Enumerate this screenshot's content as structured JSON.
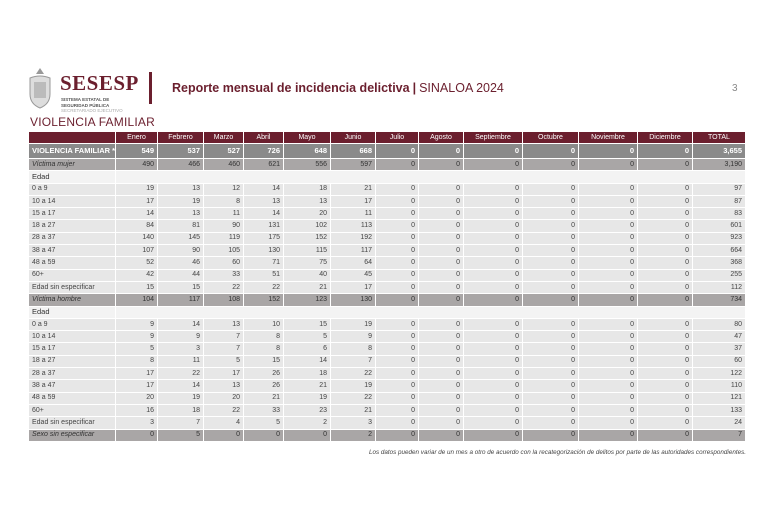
{
  "header": {
    "brand": "SESESP",
    "brand_sub": [
      "SISTEMA ESTATAL DE",
      "SEGURIDAD PÚBLICA",
      "SECRETARIADO EJECUTIVO"
    ],
    "title": "Reporte mensual de incidencia delictiva",
    "separator": "|",
    "state": "SINALOA 2024",
    "page_number": "3"
  },
  "section_title": "VIOLENCIA FAMILIAR",
  "colors": {
    "brand": "#6b1f2e",
    "total_row": "#8a8a8a",
    "sub_row": "#a9a6a6"
  },
  "table": {
    "columns": [
      "",
      "Enero",
      "Febrero",
      "Marzo",
      "Abril",
      "Mayo",
      "Junio",
      "Julio",
      "Agosto",
      "Septiembre",
      "Octubre",
      "Noviembre",
      "Diciembre",
      "TOTAL"
    ],
    "rows": [
      {
        "type": "total",
        "label": "VIOLENCIA FAMILIAR  *",
        "values": [
          "549",
          "537",
          "527",
          "726",
          "648",
          "668",
          "0",
          "0",
          "0",
          "0",
          "0",
          "0",
          "3,655"
        ]
      },
      {
        "type": "sub",
        "label": "Víctima mujer",
        "values": [
          "490",
          "466",
          "460",
          "621",
          "556",
          "597",
          "0",
          "0",
          "0",
          "0",
          "0",
          "0",
          "3,190"
        ]
      },
      {
        "type": "grp",
        "label": "Edad",
        "values": []
      },
      {
        "type": "row",
        "label": "0 a 9",
        "values": [
          "19",
          "13",
          "12",
          "14",
          "18",
          "21",
          "0",
          "0",
          "0",
          "0",
          "0",
          "0",
          "97"
        ]
      },
      {
        "type": "row",
        "label": "10 a 14",
        "values": [
          "17",
          "19",
          "8",
          "13",
          "13",
          "17",
          "0",
          "0",
          "0",
          "0",
          "0",
          "0",
          "87"
        ]
      },
      {
        "type": "row",
        "label": "15 a 17",
        "values": [
          "14",
          "13",
          "11",
          "14",
          "20",
          "11",
          "0",
          "0",
          "0",
          "0",
          "0",
          "0",
          "83"
        ]
      },
      {
        "type": "row",
        "label": "18 a 27",
        "values": [
          "84",
          "81",
          "90",
          "131",
          "102",
          "113",
          "0",
          "0",
          "0",
          "0",
          "0",
          "0",
          "601"
        ]
      },
      {
        "type": "row",
        "label": "28 a 37",
        "values": [
          "140",
          "145",
          "119",
          "175",
          "152",
          "192",
          "0",
          "0",
          "0",
          "0",
          "0",
          "0",
          "923"
        ]
      },
      {
        "type": "row",
        "label": "38 a 47",
        "values": [
          "107",
          "90",
          "105",
          "130",
          "115",
          "117",
          "0",
          "0",
          "0",
          "0",
          "0",
          "0",
          "664"
        ]
      },
      {
        "type": "row",
        "label": "48 a 59",
        "values": [
          "52",
          "46",
          "60",
          "71",
          "75",
          "64",
          "0",
          "0",
          "0",
          "0",
          "0",
          "0",
          "368"
        ]
      },
      {
        "type": "row",
        "label": "60+",
        "values": [
          "42",
          "44",
          "33",
          "51",
          "40",
          "45",
          "0",
          "0",
          "0",
          "0",
          "0",
          "0",
          "255"
        ]
      },
      {
        "type": "row",
        "label": "Edad sin especificar",
        "values": [
          "15",
          "15",
          "22",
          "22",
          "21",
          "17",
          "0",
          "0",
          "0",
          "0",
          "0",
          "0",
          "112"
        ]
      },
      {
        "type": "sub",
        "label": "Víctima hombre",
        "values": [
          "104",
          "117",
          "108",
          "152",
          "123",
          "130",
          "0",
          "0",
          "0",
          "0",
          "0",
          "0",
          "734"
        ]
      },
      {
        "type": "grp",
        "label": "Edad",
        "values": []
      },
      {
        "type": "row",
        "label": "0 a 9",
        "values": [
          "9",
          "14",
          "13",
          "10",
          "15",
          "19",
          "0",
          "0",
          "0",
          "0",
          "0",
          "0",
          "80"
        ]
      },
      {
        "type": "row",
        "label": "10 a 14",
        "values": [
          "9",
          "9",
          "7",
          "8",
          "5",
          "9",
          "0",
          "0",
          "0",
          "0",
          "0",
          "0",
          "47"
        ]
      },
      {
        "type": "row",
        "label": "15 a 17",
        "values": [
          "5",
          "3",
          "7",
          "8",
          "6",
          "8",
          "0",
          "0",
          "0",
          "0",
          "0",
          "0",
          "37"
        ]
      },
      {
        "type": "row",
        "label": "18 a 27",
        "values": [
          "8",
          "11",
          "5",
          "15",
          "14",
          "7",
          "0",
          "0",
          "0",
          "0",
          "0",
          "0",
          "60"
        ]
      },
      {
        "type": "row",
        "label": "28 a 37",
        "values": [
          "17",
          "22",
          "17",
          "26",
          "18",
          "22",
          "0",
          "0",
          "0",
          "0",
          "0",
          "0",
          "122"
        ]
      },
      {
        "type": "row",
        "label": "38 a 47",
        "values": [
          "17",
          "14",
          "13",
          "26",
          "21",
          "19",
          "0",
          "0",
          "0",
          "0",
          "0",
          "0",
          "110"
        ]
      },
      {
        "type": "row",
        "label": "48 a 59",
        "values": [
          "20",
          "19",
          "20",
          "21",
          "19",
          "22",
          "0",
          "0",
          "0",
          "0",
          "0",
          "0",
          "121"
        ]
      },
      {
        "type": "row",
        "label": "60+",
        "values": [
          "16",
          "18",
          "22",
          "33",
          "23",
          "21",
          "0",
          "0",
          "0",
          "0",
          "0",
          "0",
          "133"
        ]
      },
      {
        "type": "row",
        "label": "Edad sin especificar",
        "values": [
          "3",
          "7",
          "4",
          "5",
          "2",
          "3",
          "0",
          "0",
          "0",
          "0",
          "0",
          "0",
          "24"
        ]
      },
      {
        "type": "sub",
        "label": "Sexo sin especificar",
        "values": [
          "0",
          "5",
          "0",
          "0",
          "0",
          "2",
          "0",
          "0",
          "0",
          "0",
          "0",
          "0",
          "7"
        ]
      }
    ]
  },
  "footnote": "Los datos pueden variar de un mes a otro de acuerdo con la recategorización de delitos por parte de las autoridades correspondientes."
}
